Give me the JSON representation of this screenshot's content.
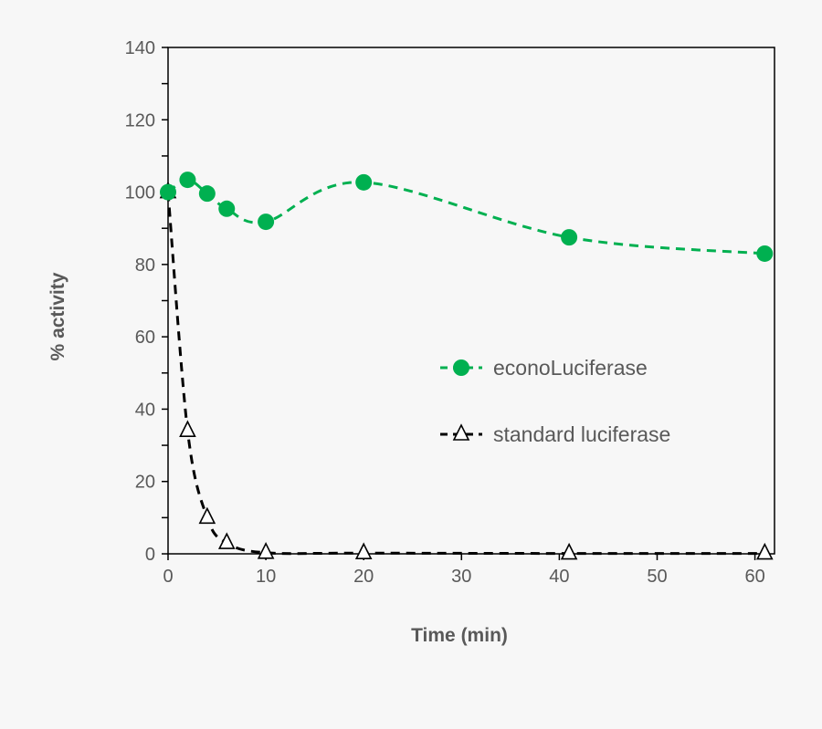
{
  "chart_data": {
    "type": "line",
    "title": "",
    "xlabel": "Time (min)",
    "ylabel": "% activity",
    "xlim": [
      0,
      62
    ],
    "ylim": [
      0,
      140
    ],
    "xticks": [
      0,
      10,
      20,
      30,
      40,
      50,
      60
    ],
    "yticks": [
      0,
      20,
      40,
      60,
      80,
      100,
      120,
      140
    ],
    "grid": false,
    "legend_position": "center-right",
    "series": [
      {
        "name": "econoLuciferase",
        "color": "#00b050",
        "marker": "circle",
        "x": [
          0,
          2,
          4,
          6,
          10,
          20,
          41,
          61
        ],
        "y": [
          100,
          103.4,
          99.6,
          95.4,
          91.8,
          102.7,
          87.5,
          83
        ]
      },
      {
        "name": "standard luciferase",
        "color": "#000000",
        "marker": "triangle-open",
        "x": [
          0,
          2,
          4,
          6,
          10,
          20,
          41,
          61
        ],
        "y": [
          100,
          34,
          10,
          3,
          0.3,
          0.2,
          0.1,
          0.1
        ]
      }
    ]
  }
}
